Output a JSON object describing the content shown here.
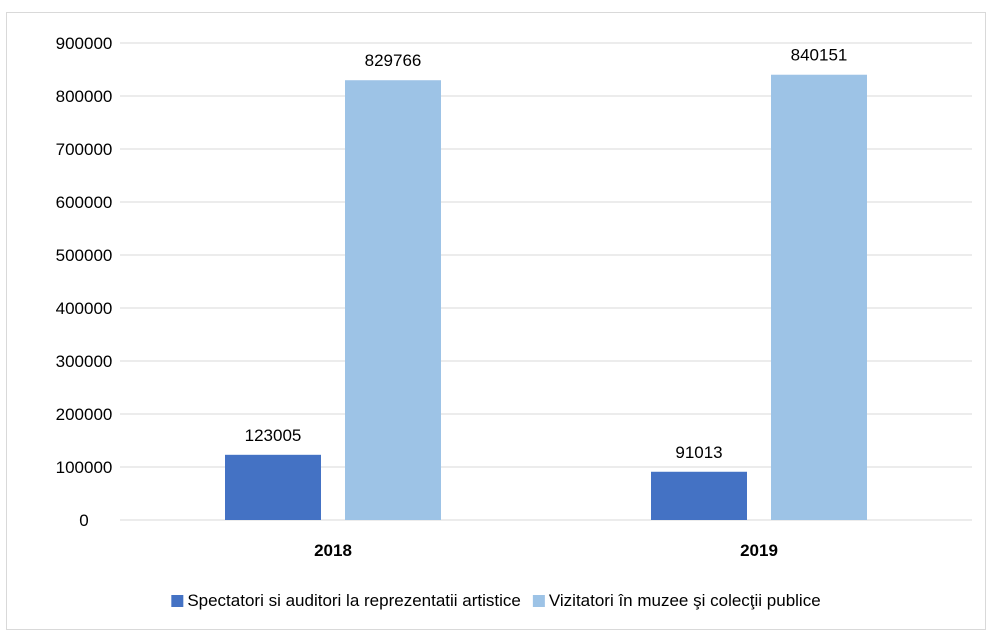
{
  "chart_data": {
    "type": "bar",
    "categories": [
      "2018",
      "2019"
    ],
    "series": [
      {
        "name": "Spectatori si auditori la reprezentatii artistice",
        "values": [
          123005,
          91013
        ],
        "color": "#4472c4"
      },
      {
        "name": "Vizitatori în muzee şi colecţii publice",
        "values": [
          829766,
          840151
        ],
        "color": "#9dc3e6"
      }
    ],
    "ylim": [
      0,
      900000
    ],
    "yticks": [
      0,
      100000,
      200000,
      300000,
      400000,
      500000,
      600000,
      700000,
      800000,
      900000
    ],
    "grid": true,
    "legend": "bottom",
    "data_labels": true
  }
}
